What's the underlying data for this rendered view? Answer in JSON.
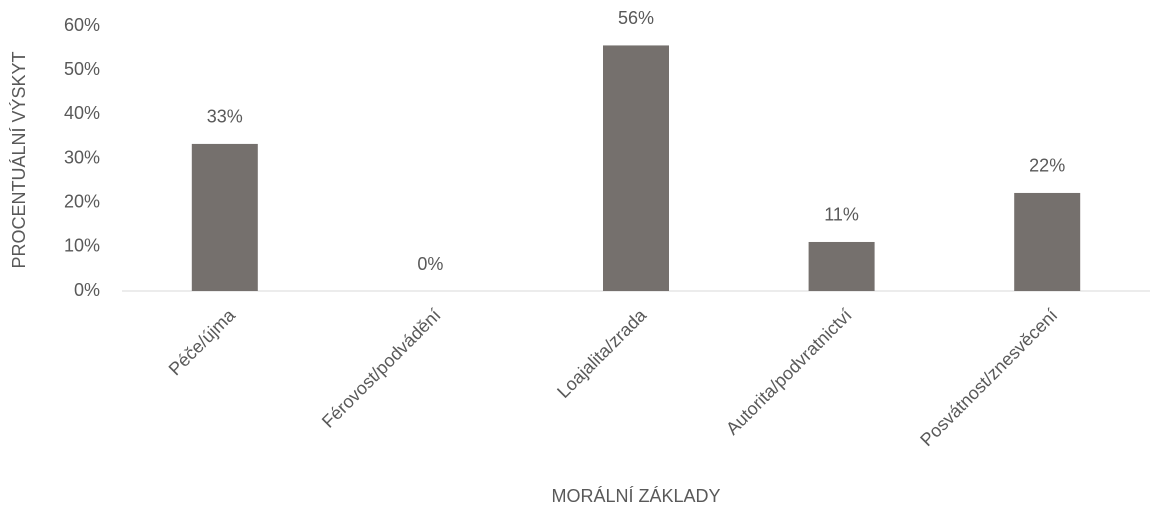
{
  "chart_data": {
    "type": "bar",
    "categories": [
      "Péče/újma",
      "Férovost/podvádění",
      "Loajalita/zrada",
      "Autorita/podvratnictví",
      "Posvátnost/znesvěcení"
    ],
    "values": [
      33.3,
      0,
      55.6,
      11.1,
      22.2
    ],
    "value_labels": [
      "33%",
      "0%",
      "56%",
      "11%",
      "22%"
    ],
    "color": "#75706d",
    "xlabel": "MORÁLNÍ ZÁKLADY",
    "ylabel": "PROCENTUÁLNÍ VÝSKYT",
    "ylim": [
      0,
      60
    ],
    "yticks": [
      {
        "value": 0,
        "label": "0%"
      },
      {
        "value": 10,
        "label": "10%"
      },
      {
        "value": 20,
        "label": "20%"
      },
      {
        "value": 30,
        "label": "30%"
      },
      {
        "value": 40,
        "label": "40%"
      },
      {
        "value": 50,
        "label": "50%"
      },
      {
        "value": 60,
        "label": "60%"
      }
    ],
    "grid": false
  }
}
